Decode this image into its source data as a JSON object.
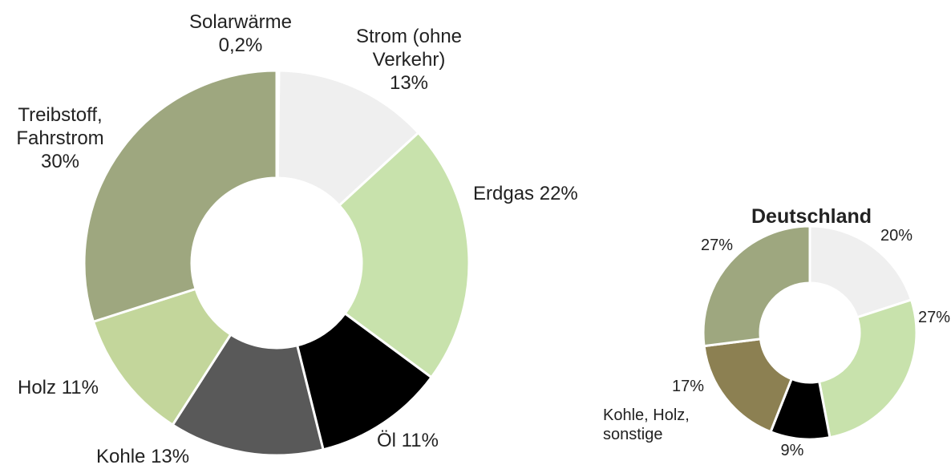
{
  "chart_data": [
    {
      "type": "donut",
      "categories": [
        "Solarwärme",
        "Strom (ohne Verkehr)",
        "Erdgas",
        "Öl",
        "Kohle",
        "Holz",
        "Treibstoff, Fahrstrom"
      ],
      "values": [
        0.2,
        13,
        22,
        11,
        13,
        11,
        30
      ],
      "value_labels": [
        "0,2%",
        "13%",
        "22%",
        "11%",
        "13%",
        "11%",
        "30%"
      ],
      "colors": [
        "#cfe0f2",
        "#efefef",
        "#c8e2ac",
        "#000000",
        "#595959",
        "#c3d69b",
        "#9ea77f"
      ]
    },
    {
      "type": "donut",
      "title": "Deutschland",
      "categories": [
        null,
        null,
        null,
        null,
        "Kohle, Holz, sonstige"
      ],
      "values": [
        20,
        27,
        9,
        17,
        27
      ],
      "value_labels": [
        "20%",
        "27%",
        "9%",
        "17%",
        "27%"
      ],
      "colors": [
        "#efefef",
        "#c8e2ac",
        "#000000",
        "#8c8052",
        "#9ea77f"
      ]
    }
  ]
}
